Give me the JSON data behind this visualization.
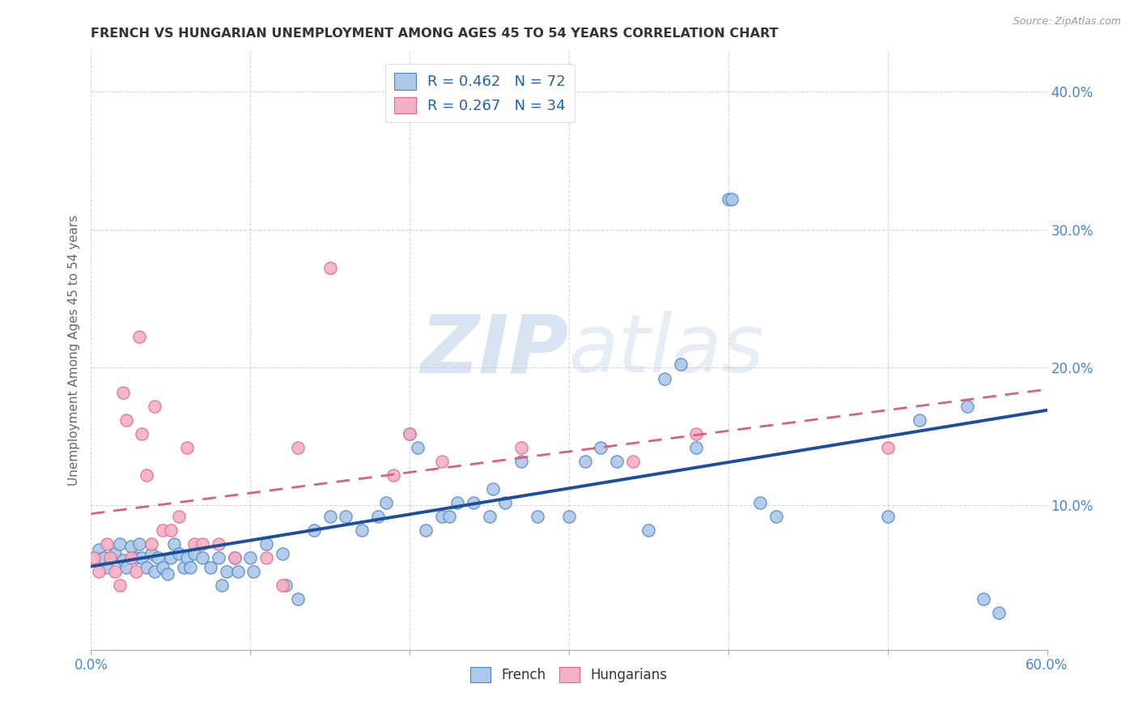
{
  "title": "FRENCH VS HUNGARIAN UNEMPLOYMENT AMONG AGES 45 TO 54 YEARS CORRELATION CHART",
  "source": "Source: ZipAtlas.com",
  "ylabel": "Unemployment Among Ages 45 to 54 years",
  "xlim": [
    0.0,
    0.6
  ],
  "ylim": [
    -0.005,
    0.43
  ],
  "xticks": [
    0.0,
    0.1,
    0.2,
    0.3,
    0.4,
    0.5,
    0.6
  ],
  "xtick_labels_show": [
    "0.0%",
    "",
    "",
    "",
    "",
    "",
    "60.0%"
  ],
  "yticks": [
    0.1,
    0.2,
    0.3,
    0.4
  ],
  "ytick_labels": [
    "10.0%",
    "20.0%",
    "30.0%",
    "40.0%"
  ],
  "french_color": "#adc8e8",
  "hungarian_color": "#f5b0c5",
  "french_edge_color": "#4a86c8",
  "hungarian_edge_color": "#e06888",
  "french_line_color": "#1a4fa0",
  "hungarian_line_color": "#d86080",
  "french_R": 0.462,
  "french_N": 72,
  "hungarian_R": 0.267,
  "hungarian_N": 34,
  "legend_label_french": "French",
  "legend_label_hungarian": "Hungarians",
  "watermark_zip": "ZIP",
  "watermark_atlas": "atlas",
  "background_color": "#ffffff",
  "grid_color": "#cccccc",
  "title_color": "#333333",
  "axis_label_color": "#666666",
  "tick_color": "#4a86c8",
  "french_scatter_x": [
    0.005,
    0.008,
    0.01,
    0.015,
    0.018,
    0.02,
    0.022,
    0.025,
    0.028,
    0.03,
    0.032,
    0.035,
    0.038,
    0.04,
    0.042,
    0.045,
    0.048,
    0.05,
    0.052,
    0.055,
    0.058,
    0.06,
    0.062,
    0.065,
    0.07,
    0.075,
    0.08,
    0.082,
    0.085,
    0.09,
    0.092,
    0.1,
    0.102,
    0.11,
    0.12,
    0.122,
    0.13,
    0.14,
    0.15,
    0.16,
    0.17,
    0.18,
    0.185,
    0.2,
    0.205,
    0.21,
    0.22,
    0.225,
    0.23,
    0.24,
    0.25,
    0.252,
    0.26,
    0.27,
    0.28,
    0.3,
    0.31,
    0.32,
    0.33,
    0.35,
    0.36,
    0.37,
    0.38,
    0.4,
    0.402,
    0.42,
    0.43,
    0.5,
    0.52,
    0.55,
    0.56,
    0.57
  ],
  "french_scatter_y": [
    0.068,
    0.062,
    0.055,
    0.065,
    0.072,
    0.06,
    0.055,
    0.07,
    0.062,
    0.072,
    0.062,
    0.055,
    0.065,
    0.052,
    0.062,
    0.055,
    0.05,
    0.062,
    0.072,
    0.065,
    0.055,
    0.062,
    0.055,
    0.065,
    0.062,
    0.055,
    0.062,
    0.042,
    0.052,
    0.062,
    0.052,
    0.062,
    0.052,
    0.072,
    0.065,
    0.042,
    0.032,
    0.082,
    0.092,
    0.092,
    0.082,
    0.092,
    0.102,
    0.152,
    0.142,
    0.082,
    0.092,
    0.092,
    0.102,
    0.102,
    0.092,
    0.112,
    0.102,
    0.132,
    0.092,
    0.092,
    0.132,
    0.142,
    0.132,
    0.082,
    0.192,
    0.202,
    0.142,
    0.322,
    0.322,
    0.102,
    0.092,
    0.092,
    0.162,
    0.172,
    0.032,
    0.022
  ],
  "hungarian_scatter_x": [
    0.002,
    0.005,
    0.01,
    0.012,
    0.015,
    0.018,
    0.02,
    0.022,
    0.025,
    0.028,
    0.03,
    0.032,
    0.035,
    0.038,
    0.04,
    0.045,
    0.05,
    0.055,
    0.06,
    0.065,
    0.07,
    0.08,
    0.09,
    0.11,
    0.12,
    0.13,
    0.15,
    0.19,
    0.2,
    0.22,
    0.27,
    0.34,
    0.38,
    0.5
  ],
  "hungarian_scatter_y": [
    0.062,
    0.052,
    0.072,
    0.062,
    0.052,
    0.042,
    0.182,
    0.162,
    0.062,
    0.052,
    0.222,
    0.152,
    0.122,
    0.072,
    0.172,
    0.082,
    0.082,
    0.092,
    0.142,
    0.072,
    0.072,
    0.072,
    0.062,
    0.062,
    0.042,
    0.142,
    0.272,
    0.122,
    0.152,
    0.132,
    0.142,
    0.132,
    0.152,
    0.142
  ]
}
